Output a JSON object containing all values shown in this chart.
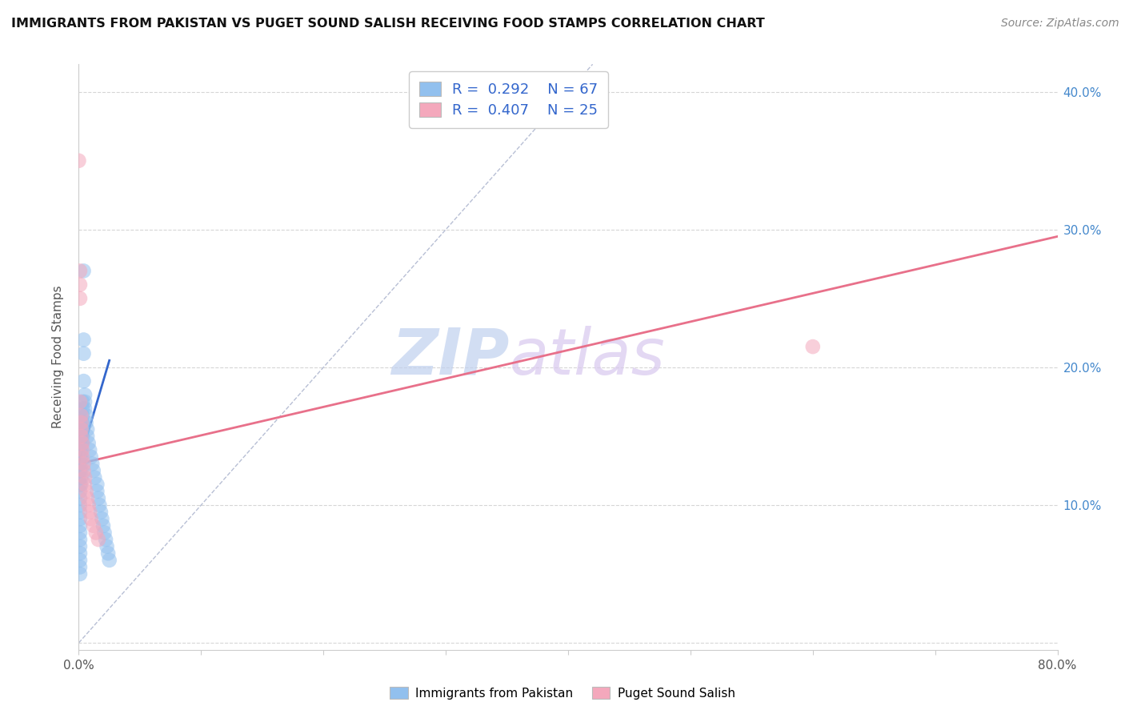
{
  "title": "IMMIGRANTS FROM PAKISTAN VS PUGET SOUND SALISH RECEIVING FOOD STAMPS CORRELATION CHART",
  "source": "Source: ZipAtlas.com",
  "ylabel": "Receiving Food Stamps",
  "xlim": [
    0.0,
    0.8
  ],
  "ylim": [
    -0.005,
    0.42
  ],
  "xticks": [
    0.0,
    0.1,
    0.2,
    0.3,
    0.4,
    0.5,
    0.6,
    0.7,
    0.8
  ],
  "xtick_labels": [
    "0.0%",
    "",
    "",
    "",
    "",
    "",
    "",
    "",
    "80.0%"
  ],
  "yticks": [
    0.0,
    0.1,
    0.2,
    0.3,
    0.4
  ],
  "ytick_labels_right": [
    "",
    "10.0%",
    "20.0%",
    "30.0%",
    "40.0%"
  ],
  "blue_color": "#92C0EE",
  "pink_color": "#F4A8BC",
  "blue_line_color": "#3366CC",
  "pink_line_color": "#E8708A",
  "ref_line_color": "#B0B8D0",
  "watermark": "ZIPatlas",
  "watermark_color_zip": "#C0D0EE",
  "watermark_color_atlas": "#D8C8EE",
  "legend_label_blue": "Immigrants from Pakistan",
  "legend_label_pink": "Puget Sound Salish",
  "legend_R_blue": "R =  0.292",
  "legend_N_blue": "N = 67",
  "legend_R_pink": "R =  0.407",
  "legend_N_pink": "N = 25",
  "blue_scatter_x": [
    0.0,
    0.0,
    0.001,
    0.001,
    0.001,
    0.001,
    0.001,
    0.001,
    0.001,
    0.001,
    0.001,
    0.001,
    0.001,
    0.001,
    0.001,
    0.001,
    0.001,
    0.001,
    0.001,
    0.001,
    0.001,
    0.002,
    0.002,
    0.002,
    0.002,
    0.002,
    0.002,
    0.002,
    0.002,
    0.002,
    0.002,
    0.003,
    0.003,
    0.003,
    0.003,
    0.003,
    0.003,
    0.003,
    0.004,
    0.004,
    0.004,
    0.004,
    0.005,
    0.005,
    0.005,
    0.006,
    0.006,
    0.007,
    0.007,
    0.008,
    0.009,
    0.01,
    0.011,
    0.012,
    0.013,
    0.015,
    0.015,
    0.016,
    0.017,
    0.018,
    0.019,
    0.02,
    0.021,
    0.022,
    0.023,
    0.024,
    0.025
  ],
  "blue_scatter_y": [
    0.155,
    0.145,
    0.14,
    0.135,
    0.13,
    0.125,
    0.12,
    0.115,
    0.11,
    0.105,
    0.1,
    0.095,
    0.09,
    0.085,
    0.08,
    0.075,
    0.07,
    0.065,
    0.06,
    0.055,
    0.05,
    0.16,
    0.155,
    0.15,
    0.145,
    0.14,
    0.135,
    0.13,
    0.125,
    0.12,
    0.115,
    0.175,
    0.17,
    0.165,
    0.16,
    0.155,
    0.15,
    0.145,
    0.27,
    0.22,
    0.21,
    0.19,
    0.18,
    0.175,
    0.17,
    0.165,
    0.16,
    0.155,
    0.15,
    0.145,
    0.14,
    0.135,
    0.13,
    0.125,
    0.12,
    0.115,
    0.11,
    0.105,
    0.1,
    0.095,
    0.09,
    0.085,
    0.08,
    0.075,
    0.07,
    0.065,
    0.06
  ],
  "pink_scatter_x": [
    0.0,
    0.001,
    0.001,
    0.001,
    0.001,
    0.002,
    0.002,
    0.002,
    0.002,
    0.003,
    0.003,
    0.003,
    0.004,
    0.004,
    0.005,
    0.005,
    0.006,
    0.007,
    0.008,
    0.009,
    0.01,
    0.012,
    0.014,
    0.016,
    0.6
  ],
  "pink_scatter_y": [
    0.35,
    0.27,
    0.26,
    0.25,
    0.175,
    0.165,
    0.16,
    0.155,
    0.15,
    0.145,
    0.14,
    0.135,
    0.13,
    0.125,
    0.12,
    0.115,
    0.11,
    0.105,
    0.1,
    0.095,
    0.09,
    0.085,
    0.08,
    0.075,
    0.215
  ],
  "blue_trend_x": [
    0.0,
    0.025
  ],
  "blue_trend_y": [
    0.13,
    0.205
  ],
  "pink_trend_x": [
    0.0,
    0.8
  ],
  "pink_trend_y": [
    0.13,
    0.295
  ],
  "ref_line_x": [
    0.0,
    0.42
  ],
  "ref_line_y": [
    0.0,
    0.42
  ]
}
